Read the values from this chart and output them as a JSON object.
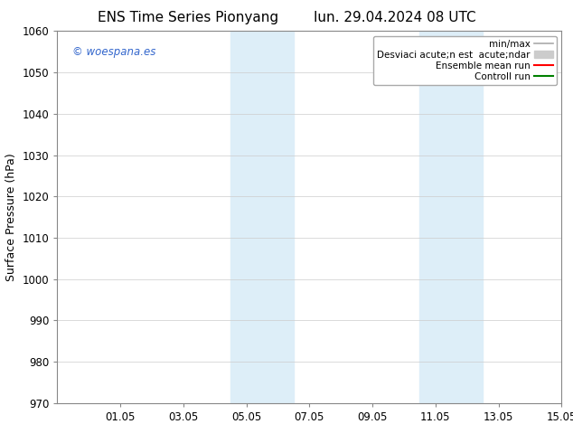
{
  "title_left": "ENS Time Series Pionyang",
  "title_right": "lun. 29.04.2024 08 UTC",
  "ylabel": "Surface Pressure (hPa)",
  "ylim": [
    970,
    1060
  ],
  "yticks": [
    970,
    980,
    990,
    1000,
    1010,
    1020,
    1030,
    1040,
    1050,
    1060
  ],
  "xlim_start": 29.0,
  "xlim_end": 45.0,
  "xtick_labels": [
    "01.05",
    "03.05",
    "05.05",
    "07.05",
    "09.05",
    "11.05",
    "13.05",
    "15.05"
  ],
  "xtick_positions": [
    31,
    33,
    35,
    37,
    39,
    41,
    43,
    45
  ],
  "shaded_bands": [
    {
      "x_start": 34.5,
      "x_end": 36.5
    },
    {
      "x_start": 40.5,
      "x_end": 42.5
    }
  ],
  "shaded_color": "#ddeef8",
  "watermark_text": "© woespana.es",
  "watermark_color": "#3366cc",
  "legend_entries": [
    {
      "label": "min/max",
      "color": "#aaaaaa",
      "lw": 1.2,
      "style": "line"
    },
    {
      "label": "Desviaci acute;n est  acute;ndar",
      "color": "#cccccc",
      "lw": 7,
      "style": "band"
    },
    {
      "label": "Ensemble mean run",
      "color": "red",
      "lw": 1.5,
      "style": "line"
    },
    {
      "label": "Controll run",
      "color": "green",
      "lw": 1.5,
      "style": "line"
    }
  ],
  "bg_color": "#ffffff",
  "plot_bg_color": "#ffffff",
  "grid_color": "#cccccc",
  "title_fontsize": 11,
  "axis_fontsize": 9,
  "tick_fontsize": 8.5,
  "legend_fontsize": 7.5
}
